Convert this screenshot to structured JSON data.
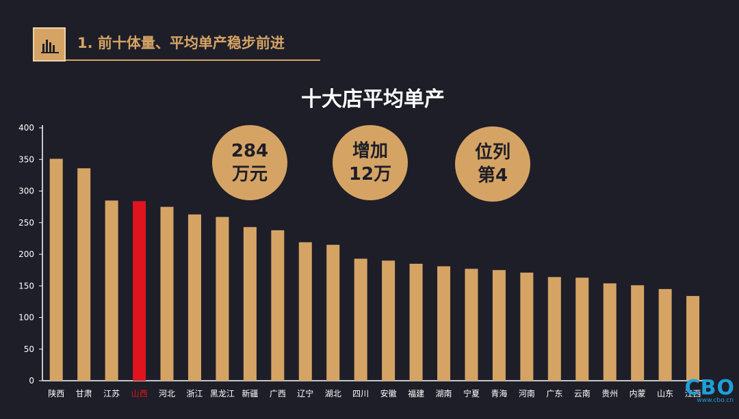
{
  "header": {
    "title": "1. 前十体量、平均单产稳步前进",
    "icon": "bar-chart-icon"
  },
  "badges": [
    {
      "line1": "284",
      "line2": "万元"
    },
    {
      "line1": "增加",
      "line2": "12万"
    },
    {
      "line1": "位列",
      "line2": "第4"
    }
  ],
  "watermark": {
    "logo": "CBO",
    "url": "www.cbo.cn"
  },
  "colors": {
    "background": "#1e1e28",
    "bar": "#d5a465",
    "highlight": "#e0141e",
    "axis_text": "#ffffff"
  },
  "chart_data": {
    "type": "bar",
    "title": "十大店平均单产",
    "xlabel": "",
    "ylabel": "",
    "ylim": [
      0,
      400
    ],
    "yticks": [
      0,
      50,
      100,
      150,
      200,
      250,
      300,
      350,
      400
    ],
    "grid": false,
    "highlight_category": "山西",
    "categories": [
      "陕西",
      "甘肃",
      "江苏",
      "山西",
      "河北",
      "浙江",
      "黑龙江",
      "新疆",
      "广西",
      "辽宁",
      "湖北",
      "四川",
      "安徽",
      "福建",
      "湖南",
      "宁夏",
      "青海",
      "河南",
      "广东",
      "云南",
      "贵州",
      "内蒙",
      "山东",
      "江西"
    ],
    "values": [
      351,
      336,
      285,
      284,
      275,
      263,
      259,
      243,
      238,
      219,
      215,
      193,
      190,
      185,
      181,
      177,
      175,
      171,
      164,
      163,
      154,
      151,
      145,
      134
    ]
  }
}
